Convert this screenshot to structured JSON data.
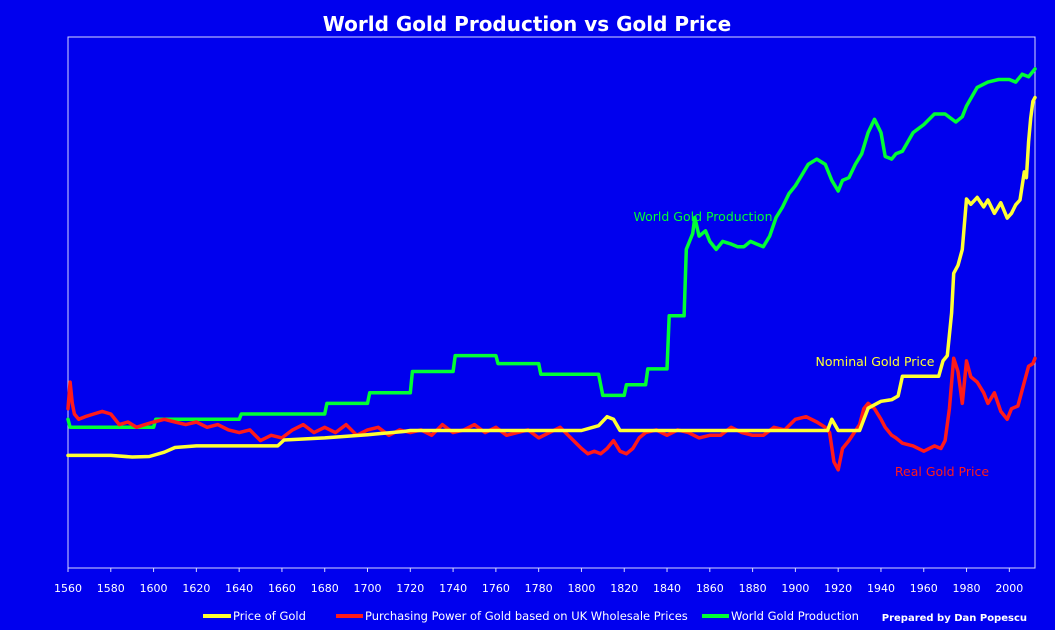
{
  "chart_data": {
    "type": "line",
    "title": "World Gold Production vs Gold Price",
    "xlabel": "",
    "ylabel": "",
    "xlim": [
      1560,
      2012
    ],
    "ylim": [
      0,
      100
    ],
    "y_axis_labels_shown": false,
    "grid": false,
    "legend_position": "bottom",
    "background_color": "#0000ee",
    "x_ticks": [
      1560,
      1580,
      1600,
      1620,
      1640,
      1660,
      1680,
      1700,
      1720,
      1740,
      1760,
      1780,
      1800,
      1820,
      1840,
      1860,
      1880,
      1900,
      1920,
      1940,
      1960,
      1980,
      2000
    ],
    "series": [
      {
        "name": "Price of Gold",
        "color": "#ffff33",
        "x": [
          1560,
          1580,
          1590,
          1598,
          1605,
          1610,
          1620,
          1640,
          1658,
          1661,
          1680,
          1700,
          1717,
          1720,
          1740,
          1760,
          1780,
          1800,
          1808,
          1812,
          1815,
          1818,
          1830,
          1850,
          1870,
          1900,
          1915,
          1917,
          1920,
          1924,
          1930,
          1934,
          1940,
          1945,
          1948,
          1950,
          1960,
          1967,
          1969,
          1971,
          1973,
          1974,
          1976,
          1978,
          1980,
          1982,
          1985,
          1988,
          1990,
          1993,
          1996,
          1999,
          2001,
          2003,
          2005,
          2007,
          2008,
          2009,
          2010,
          2011,
          2012
        ],
        "values": [
          21.2,
          21.2,
          20.9,
          21.0,
          21.8,
          22.7,
          23.0,
          23.0,
          23.0,
          24.1,
          24.5,
          25.1,
          25.7,
          25.9,
          25.9,
          25.9,
          25.9,
          25.9,
          26.8,
          28.5,
          28.0,
          25.9,
          25.9,
          25.9,
          25.9,
          25.9,
          25.9,
          28.0,
          25.9,
          25.9,
          25.9,
          30.1,
          31.4,
          31.7,
          32.4,
          36.1,
          36.1,
          36.1,
          39.0,
          40.0,
          48.0,
          55.5,
          57.0,
          60.0,
          69.5,
          68.5,
          69.8,
          68.0,
          69.3,
          66.8,
          68.8,
          65.9,
          66.8,
          68.4,
          69.3,
          74.6,
          73.5,
          80.3,
          84.7,
          87.9,
          88.6
        ]
      },
      {
        "name": "Purchasing Power of Gold based on UK Wholesale Prices",
        "color": "#ff1a1a",
        "x": [
          1560,
          1561,
          1562,
          1563,
          1565,
          1568,
          1572,
          1576,
          1580,
          1584,
          1588,
          1592,
          1596,
          1600,
          1605,
          1610,
          1615,
          1620,
          1625,
          1630,
          1635,
          1640,
          1645,
          1650,
          1655,
          1660,
          1665,
          1670,
          1675,
          1680,
          1685,
          1690,
          1695,
          1700,
          1705,
          1710,
          1715,
          1720,
          1725,
          1730,
          1735,
          1740,
          1745,
          1750,
          1755,
          1760,
          1765,
          1770,
          1775,
          1780,
          1785,
          1790,
          1795,
          1800,
          1803,
          1806,
          1809,
          1812,
          1815,
          1818,
          1821,
          1824,
          1827,
          1830,
          1835,
          1840,
          1845,
          1850,
          1855,
          1860,
          1865,
          1870,
          1875,
          1880,
          1885,
          1890,
          1895,
          1900,
          1905,
          1910,
          1914,
          1916,
          1918,
          1920,
          1922,
          1925,
          1930,
          1932,
          1934,
          1937,
          1940,
          1942,
          1945,
          1947,
          1950,
          1955,
          1960,
          1965,
          1968,
          1970,
          1972,
          1974,
          1976,
          1978,
          1980,
          1982,
          1985,
          1988,
          1990,
          1993,
          1996,
          1999,
          2001,
          2004,
          2007,
          2009,
          2011,
          2012
        ],
        "values": [
          30.0,
          35.0,
          31.0,
          29.0,
          28.0,
          28.5,
          29.0,
          29.5,
          29.0,
          27.0,
          27.5,
          26.5,
          27.0,
          27.5,
          28.0,
          27.5,
          27.0,
          27.5,
          26.5,
          27.0,
          26.0,
          25.5,
          26.0,
          24.0,
          25.0,
          24.5,
          26.0,
          27.0,
          25.5,
          26.5,
          25.5,
          27.0,
          25.0,
          26.0,
          26.5,
          25.0,
          26.0,
          25.5,
          26.0,
          25.0,
          27.0,
          25.5,
          26.0,
          27.0,
          25.5,
          26.5,
          25.0,
          25.5,
          26.0,
          24.5,
          25.5,
          26.5,
          24.5,
          22.5,
          21.5,
          22.0,
          21.5,
          22.5,
          24.0,
          22.0,
          21.5,
          22.5,
          24.5,
          25.5,
          26.0,
          25.0,
          26.0,
          25.5,
          24.5,
          25.0,
          25.0,
          26.5,
          25.5,
          25.0,
          25.0,
          26.5,
          26.0,
          28.0,
          28.5,
          27.5,
          26.5,
          25.5,
          20.0,
          18.5,
          22.5,
          24.0,
          27.0,
          30.0,
          31.0,
          30.0,
          28.0,
          26.5,
          25.0,
          24.5,
          23.5,
          23.0,
          22.0,
          23.0,
          22.5,
          24.0,
          30.0,
          39.5,
          37.0,
          31.0,
          39.0,
          36.0,
          35.0,
          33.0,
          31.0,
          33.0,
          29.5,
          28.0,
          30.0,
          30.5,
          35.0,
          38.0,
          38.5,
          39.5
        ]
      },
      {
        "name": "World Gold Production",
        "color": "#00ff33",
        "x": [
          1560,
          1561,
          1600,
          1601,
          1640,
          1641,
          1680,
          1681,
          1700,
          1701,
          1720,
          1721,
          1740,
          1741,
          1760,
          1761,
          1780,
          1781,
          1800,
          1808,
          1809,
          1810,
          1820,
          1821,
          1830,
          1831,
          1840,
          1841,
          1848,
          1849,
          1852,
          1853,
          1855,
          1858,
          1860,
          1863,
          1866,
          1870,
          1873,
          1876,
          1879,
          1882,
          1885,
          1888,
          1891,
          1894,
          1897,
          1900,
          1903,
          1906,
          1910,
          1914,
          1917,
          1920,
          1922,
          1925,
          1928,
          1931,
          1934,
          1937,
          1940,
          1942,
          1945,
          1947,
          1950,
          1955,
          1960,
          1965,
          1970,
          1975,
          1978,
          1980,
          1985,
          1990,
          1995,
          2000,
          2003,
          2006,
          2009,
          2012
        ],
        "values": [
          28,
          26.5,
          26.5,
          28.0,
          28.0,
          29.0,
          29.0,
          31.0,
          31.0,
          33.0,
          33.0,
          37.0,
          37.0,
          40.0,
          40.0,
          38.5,
          38.5,
          36.5,
          36.5,
          36.5,
          34.5,
          32.5,
          32.5,
          34.5,
          34.5,
          37.5,
          37.5,
          47.5,
          47.5,
          60.0,
          63.0,
          66.0,
          62.5,
          63.5,
          61.5,
          60.0,
          61.5,
          61.0,
          60.5,
          60.5,
          61.5,
          61.0,
          60.5,
          62.5,
          66.0,
          68.0,
          70.5,
          72.0,
          74.0,
          76.0,
          77.0,
          76.0,
          73.0,
          71.0,
          73.0,
          73.5,
          76.0,
          78.0,
          82.0,
          84.5,
          82.0,
          77.5,
          77.0,
          78.0,
          78.5,
          82.0,
          83.5,
          85.5,
          85.5,
          84.0,
          85.0,
          87.0,
          90.5,
          91.5,
          92.0,
          92.0,
          91.5,
          93.0,
          92.5,
          94.0
        ]
      }
    ],
    "annotations": [
      {
        "text": "World Gold Production",
        "color": "#00ff33"
      },
      {
        "text": "Nominal Gold Price",
        "color": "#ffff33"
      },
      {
        "text": "Real Gold Price",
        "color": "#ff1a1a"
      }
    ],
    "credit": "Prepared by Dan Popescu"
  }
}
